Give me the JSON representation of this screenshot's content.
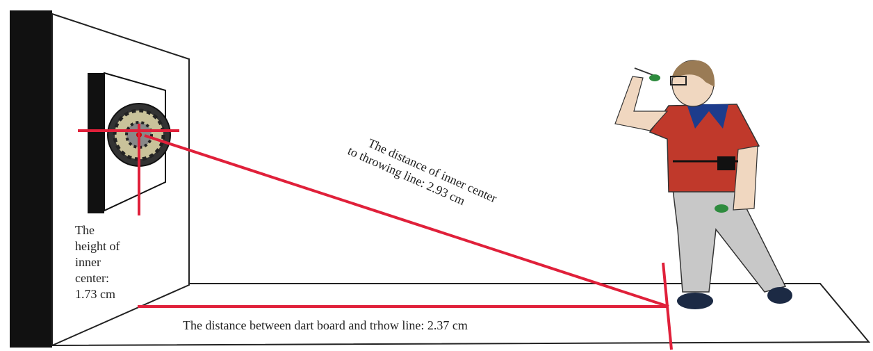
{
  "labels": {
    "height": {
      "lines": [
        "The",
        "height of",
        "inner",
        "center:",
        "1.73 cm"
      ]
    },
    "diagonal": {
      "lines": [
        "The distance of inner center",
        "to throwing line: 2.93 cm"
      ]
    },
    "floor": {
      "text": "The distance between dart board and trhow line: 2.37 cm"
    }
  }
}
